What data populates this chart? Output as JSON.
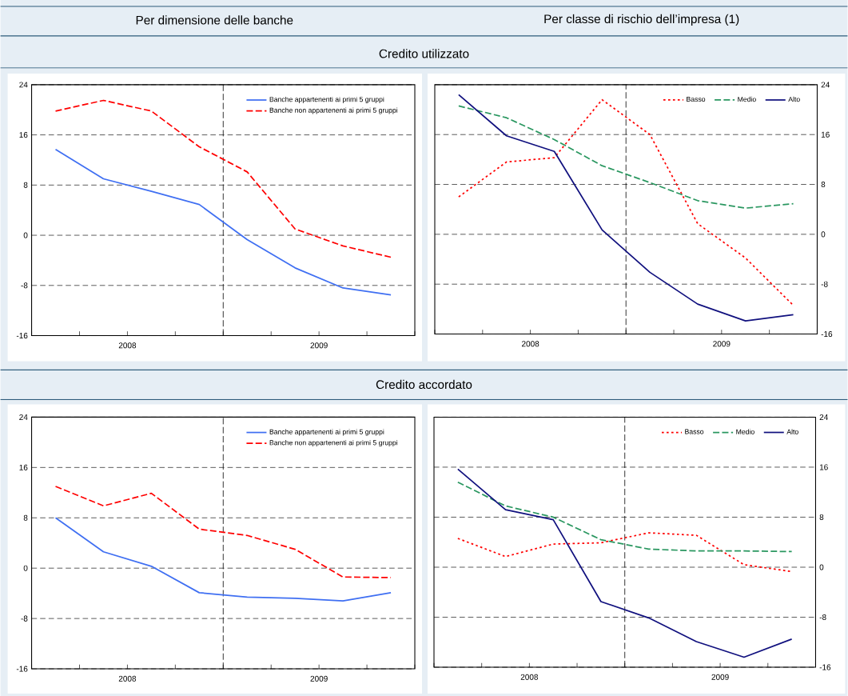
{
  "chart_data": [
    {
      "type": "line",
      "title": "Per dimensione delle banche",
      "subtitle": "Credito utilizzato",
      "x": [
        2008.125,
        2008.375,
        2008.625,
        2008.875,
        2009.125,
        2009.375,
        2009.625,
        2009.875
      ],
      "series": [
        {
          "name": "Banche appartenenti ai primi 5 gruppi",
          "color": "#3f6ff2",
          "line_style": "solid",
          "values": [
            13.7,
            9.0,
            7.0,
            4.9,
            -0.7,
            -5.2,
            -8.4,
            -9.5
          ]
        },
        {
          "name": "Banche non appartenenti ai primi 5 gruppi",
          "color": "#ff0000",
          "line_style": "dashed",
          "values": [
            19.8,
            21.5,
            19.8,
            14.1,
            10.1,
            1.0,
            -1.7,
            -3.5
          ]
        }
      ],
      "xlim": [
        2008,
        2010
      ],
      "xticks": [
        {
          "value": 2008,
          "label": null
        },
        {
          "value": 2008.25,
          "label": null
        },
        {
          "value": 2008.5,
          "label": "2008"
        },
        {
          "value": 2008.75,
          "label": null
        },
        {
          "value": 2009,
          "label": null
        },
        {
          "value": 2009.25,
          "label": null
        },
        {
          "value": 2009.5,
          "label": "2009"
        },
        {
          "value": 2009.75,
          "label": null
        },
        {
          "value": 2010,
          "label": null
        }
      ],
      "ylim": [
        -16,
        24
      ],
      "yticks": [
        -16,
        -8,
        0,
        8,
        16,
        24
      ],
      "ref_lines": [
        {
          "axis": "x",
          "value": 2009,
          "line_style": "dashed"
        }
      ],
      "grid": "y",
      "legend": "top right",
      "marker": "none"
    },
    {
      "type": "line",
      "title": "Per classe di rischio dell’impresa (1)",
      "x": [
        2008.125,
        2008.375,
        2008.625,
        2008.875,
        2009.125,
        2009.375,
        2009.625,
        2009.875
      ],
      "series": [
        {
          "name": "Basso",
          "color": "#ff0000",
          "line_style": "dotted",
          "axis": "y2",
          "values": [
            6.0,
            11.6,
            12.3,
            21.6,
            16.0,
            1.7,
            -3.8,
            -11.4
          ]
        },
        {
          "name": "Medio",
          "color": "#2a9760",
          "line_style": "dashed",
          "axis": "y2",
          "values": [
            20.6,
            18.7,
            15.2,
            11.0,
            8.3,
            5.4,
            4.2,
            4.9
          ]
        },
        {
          "name": "Alto",
          "color": "#10107e",
          "line_style": "solid",
          "axis": "y2",
          "values": [
            22.4,
            15.8,
            13.3,
            0.7,
            -6.1,
            -11.2,
            -13.9,
            -12.9
          ]
        }
      ],
      "xlim": [
        2008,
        2010
      ],
      "xticks": [
        {
          "value": 2008,
          "label": null
        },
        {
          "value": 2008.25,
          "label": null
        },
        {
          "value": 2008.5,
          "label": "2008"
        },
        {
          "value": 2008.75,
          "label": null
        },
        {
          "value": 2009,
          "label": null
        },
        {
          "value": 2009.25,
          "label": null
        },
        {
          "value": 2009.5,
          "label": "2009"
        },
        {
          "value": 2009.75,
          "label": null
        },
        {
          "value": 2010,
          "label": null
        }
      ],
      "y2lim": [
        -16,
        24
      ],
      "y2ticks": [
        -16,
        -8,
        0,
        8,
        16,
        24
      ],
      "ref_lines": [
        {
          "axis": "x",
          "value": 2009,
          "line_style": "dashed"
        }
      ],
      "grid": "y",
      "legend": "top right",
      "marker": "none"
    },
    {
      "type": "line",
      "subtitle": "Credito accordato",
      "x": [
        2008.125,
        2008.375,
        2008.625,
        2008.875,
        2009.125,
        2009.375,
        2009.625,
        2009.875
      ],
      "series": [
        {
          "name": "Banche appartenenti ai primi 5 gruppi",
          "color": "#3f6ff2",
          "line_style": "solid",
          "values": [
            8.0,
            2.6,
            0.3,
            -3.9,
            -4.6,
            -4.8,
            -5.2,
            -3.9
          ]
        },
        {
          "name": "Banche non appartenenti ai primi 5 gruppi",
          "color": "#ff0000",
          "line_style": "dashed",
          "values": [
            13.0,
            9.9,
            11.9,
            6.2,
            5.2,
            3.0,
            -1.4,
            -1.5
          ]
        }
      ],
      "xlim": [
        2008,
        2010
      ],
      "xticks": [
        {
          "value": 2008,
          "label": null
        },
        {
          "value": 2008.25,
          "label": null
        },
        {
          "value": 2008.5,
          "label": "2008"
        },
        {
          "value": 2008.75,
          "label": null
        },
        {
          "value": 2009,
          "label": null
        },
        {
          "value": 2009.25,
          "label": null
        },
        {
          "value": 2009.5,
          "label": "2009"
        },
        {
          "value": 2009.75,
          "label": null
        },
        {
          "value": 2010,
          "label": null
        }
      ],
      "ylim": [
        -16,
        24
      ],
      "yticks": [
        -16,
        -8,
        0,
        8,
        16,
        24
      ],
      "ref_lines": [
        {
          "axis": "x",
          "value": 2009,
          "line_style": "dashed"
        }
      ],
      "grid": "y",
      "legend": "top right",
      "marker": "none"
    },
    {
      "type": "line",
      "x": [
        2008.125,
        2008.375,
        2008.625,
        2008.875,
        2009.125,
        2009.375,
        2009.625,
        2009.875
      ],
      "series": [
        {
          "name": "Basso",
          "color": "#ff0000",
          "line_style": "dotted",
          "axis": "y2",
          "values": [
            4.6,
            1.7,
            3.7,
            3.9,
            5.5,
            5.1,
            0.4,
            -0.7
          ]
        },
        {
          "name": "Medio",
          "color": "#2a9760",
          "line_style": "dashed",
          "axis": "y2",
          "values": [
            13.6,
            9.8,
            8.0,
            4.4,
            2.9,
            2.6,
            2.6,
            2.5
          ]
        },
        {
          "name": "Alto",
          "color": "#10107e",
          "line_style": "solid",
          "axis": "y2",
          "values": [
            15.7,
            9.2,
            7.6,
            -5.5,
            -8.1,
            -11.9,
            -14.4,
            -11.5
          ]
        }
      ],
      "xlim": [
        2008,
        2010
      ],
      "xticks": [
        {
          "value": 2008,
          "label": null
        },
        {
          "value": 2008.25,
          "label": null
        },
        {
          "value": 2008.5,
          "label": "2008"
        },
        {
          "value": 2008.75,
          "label": null
        },
        {
          "value": 2009,
          "label": null
        },
        {
          "value": 2009.25,
          "label": null
        },
        {
          "value": 2009.5,
          "label": "2009"
        },
        {
          "value": 2009.75,
          "label": null
        },
        {
          "value": 2010,
          "label": null
        }
      ],
      "y2lim": [
        -16,
        24
      ],
      "y2ticks": [
        -16,
        -8,
        0,
        8,
        16,
        24
      ],
      "ref_lines": [
        {
          "axis": "x",
          "value": 2009,
          "line_style": "dashed"
        }
      ],
      "grid": "y",
      "legend": "top right",
      "marker": "none"
    }
  ]
}
